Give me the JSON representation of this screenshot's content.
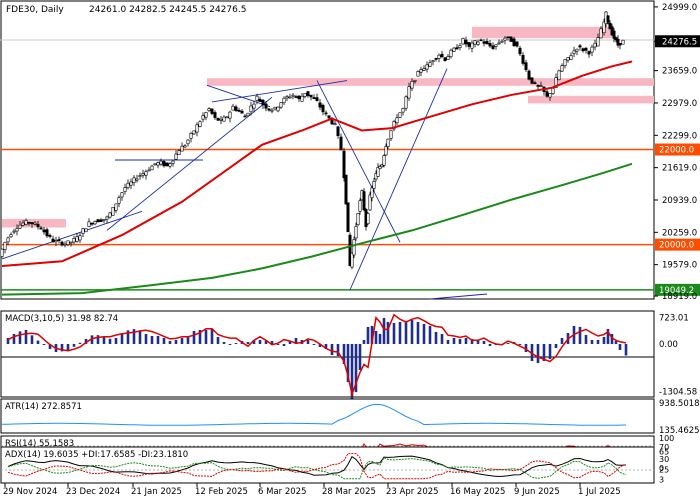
{
  "chart_data": [
    {
      "type": "candlestick",
      "title": "FDE30, Daily",
      "ohlc_label": "24261.0 24282.5 24245.5 24276.5",
      "y_ticks": [
        "24999.0",
        "24276.5",
        "23659.0",
        "22979.0",
        "22299.0",
        "21619.0",
        "20939.0",
        "20259.0",
        "19579.0",
        "18919.0"
      ],
      "last_price": "24276.5",
      "ylim": [
        18899,
        25060
      ],
      "levels": [
        {
          "label": "22000.0",
          "value": 22000,
          "color": "#ff4d00"
        },
        {
          "label": "20000.0",
          "value": 20000,
          "color": "#ff4d00"
        },
        {
          "label": "19049.2",
          "value": 19049.2,
          "color": "#1a8a1a"
        }
      ],
      "zones": [
        {
          "x_from": 2,
          "x_to": 66,
          "y_low": 20360,
          "y_high": 20540
        },
        {
          "x_from": 207,
          "x_to": 654,
          "y_low": 23340,
          "y_high": 23500
        },
        {
          "x_from": 472,
          "x_to": 612,
          "y_low": 24340,
          "y_high": 24580
        },
        {
          "x_from": 528,
          "x_to": 654,
          "y_low": 22970,
          "y_high": 23130
        }
      ],
      "x_labels": [
        "29 Nov 2024",
        "23 Dec 2024",
        "21 Jan 2025",
        "12 Feb 2025",
        "6 Mar 2025",
        "28 Mar 2025",
        "23 Apr 2025",
        "16 May 2025",
        "9 Jun 2025",
        "1 Jul 2025"
      ],
      "price_path": [
        [
          0,
          19750
        ],
        [
          6,
          20050
        ],
        [
          12,
          20250
        ],
        [
          18,
          20380
        ],
        [
          24,
          20450
        ],
        [
          30,
          20480
        ],
        [
          36,
          20420
        ],
        [
          42,
          20350
        ],
        [
          48,
          20200
        ],
        [
          54,
          20080
        ],
        [
          60,
          20050
        ],
        [
          66,
          20020
        ],
        [
          72,
          20060
        ],
        [
          78,
          20140
        ],
        [
          84,
          20300
        ],
        [
          90,
          20450
        ],
        [
          96,
          20500
        ],
        [
          102,
          20520
        ],
        [
          108,
          20560
        ],
        [
          114,
          20750
        ],
        [
          120,
          21000
        ],
        [
          126,
          21200
        ],
        [
          132,
          21300
        ],
        [
          138,
          21420
        ],
        [
          144,
          21500
        ],
        [
          150,
          21600
        ],
        [
          156,
          21700
        ],
        [
          162,
          21720
        ],
        [
          168,
          21650
        ],
        [
          174,
          21800
        ],
        [
          180,
          22000
        ],
        [
          186,
          22100
        ],
        [
          192,
          22300
        ],
        [
          198,
          22500
        ],
        [
          204,
          22700
        ],
        [
          210,
          22850
        ],
        [
          216,
          22650
        ],
        [
          222,
          22600
        ],
        [
          228,
          22700
        ],
        [
          234,
          22900
        ],
        [
          240,
          22800
        ],
        [
          246,
          22700
        ],
        [
          252,
          22900
        ],
        [
          258,
          23100
        ],
        [
          264,
          22950
        ],
        [
          270,
          22850
        ],
        [
          276,
          22850
        ],
        [
          282,
          23000
        ],
        [
          288,
          23100
        ],
        [
          294,
          23150
        ],
        [
          300,
          23050
        ],
        [
          306,
          23200
        ],
        [
          312,
          23100
        ],
        [
          318,
          23000
        ],
        [
          324,
          22800
        ],
        [
          330,
          22650
        ],
        [
          336,
          22500
        ],
        [
          342,
          22000
        ],
        [
          346,
          20900
        ],
        [
          350,
          19550
        ],
        [
          354,
          20100
        ],
        [
          358,
          20700
        ],
        [
          362,
          21100
        ],
        [
          366,
          20400
        ],
        [
          370,
          21000
        ],
        [
          374,
          21350
        ],
        [
          378,
          21600
        ],
        [
          382,
          21700
        ],
        [
          386,
          22100
        ],
        [
          392,
          22400
        ],
        [
          398,
          22700
        ],
        [
          404,
          22850
        ],
        [
          410,
          23300
        ],
        [
          416,
          23500
        ],
        [
          422,
          23700
        ],
        [
          428,
          23750
        ],
        [
          434,
          23900
        ],
        [
          440,
          24000
        ],
        [
          446,
          23900
        ],
        [
          452,
          24050
        ],
        [
          458,
          24150
        ],
        [
          464,
          24300
        ],
        [
          470,
          24150
        ],
        [
          476,
          24250
        ],
        [
          482,
          24300
        ],
        [
          488,
          24200
        ],
        [
          494,
          24150
        ],
        [
          500,
          24250
        ],
        [
          506,
          24350
        ],
        [
          512,
          24300
        ],
        [
          518,
          24150
        ],
        [
          524,
          23850
        ],
        [
          530,
          23500
        ],
        [
          536,
          23350
        ],
        [
          542,
          23300
        ],
        [
          548,
          23100
        ],
        [
          554,
          23300
        ],
        [
          560,
          23650
        ],
        [
          566,
          23850
        ],
        [
          572,
          24000
        ],
        [
          578,
          24150
        ],
        [
          584,
          24100
        ],
        [
          590,
          24050
        ],
        [
          596,
          24200
        ],
        [
          602,
          24500
        ],
        [
          606,
          24850
        ],
        [
          610,
          24550
        ],
        [
          614,
          24350
        ],
        [
          618,
          24200
        ],
        [
          624,
          24276
        ]
      ],
      "ma_red": [
        [
          0,
          19550
        ],
        [
          60,
          19650
        ],
        [
          120,
          20200
        ],
        [
          180,
          20900
        ],
        [
          220,
          21500
        ],
        [
          260,
          22100
        ],
        [
          300,
          22400
        ],
        [
          330,
          22650
        ],
        [
          360,
          22400
        ],
        [
          390,
          22450
        ],
        [
          430,
          22700
        ],
        [
          470,
          22950
        ],
        [
          510,
          23150
        ],
        [
          550,
          23300
        ],
        [
          580,
          23550
        ],
        [
          610,
          23750
        ],
        [
          630,
          23850
        ]
      ],
      "ma_green": [
        [
          0,
          18950
        ],
        [
          80,
          18980
        ],
        [
          150,
          19150
        ],
        [
          210,
          19300
        ],
        [
          260,
          19500
        ],
        [
          310,
          19750
        ],
        [
          360,
          20030
        ],
        [
          410,
          20300
        ],
        [
          460,
          20620
        ],
        [
          510,
          20950
        ],
        [
          560,
          21250
        ],
        [
          600,
          21500
        ],
        [
          630,
          21700
        ]
      ],
      "trendlines": [
        [
          [
            0,
            19700
          ],
          [
            140,
            20700
          ]
        ],
        [
          [
            105,
            20300
          ],
          [
            270,
            23100
          ]
        ],
        [
          [
            210,
            23000
          ],
          [
            345,
            23450
          ]
        ],
        [
          [
            205,
            23350
          ],
          [
            268,
            22900
          ]
        ],
        [
          [
            315,
            23450
          ],
          [
            398,
            20050
          ]
        ],
        [
          [
            348,
            19050
          ],
          [
            445,
            23700
          ]
        ]
      ],
      "hline_short": [
        [
          115,
          21780
        ],
        [
          203,
          21780
        ]
      ]
    },
    {
      "type": "histogram",
      "label": "MACD(3,10,5) 31.98 82.74",
      "y_ticks": [
        "723.01",
        "0.00",
        "-1304.58"
      ],
      "ylim": [
        -1400,
        850
      ]
    },
    {
      "type": "line",
      "label": "ATR(14) 272.8571",
      "y_ticks": [
        "938.5018",
        "135.4625"
      ],
      "ylim": [
        100,
        1000
      ]
    },
    {
      "type": "line",
      "label": "RSI(14) 55.1583",
      "y_ticks": [
        "100",
        "70",
        "30",
        "0"
      ],
      "ylim": [
        0,
        100
      ]
    },
    {
      "type": "line",
      "label": "ADX(14) 19.6035 +DI:17.6585 -DI:23.1810",
      "y_ticks": [
        "65",
        "25",
        "3"
      ],
      "ylim": [
        0,
        70
      ]
    }
  ]
}
